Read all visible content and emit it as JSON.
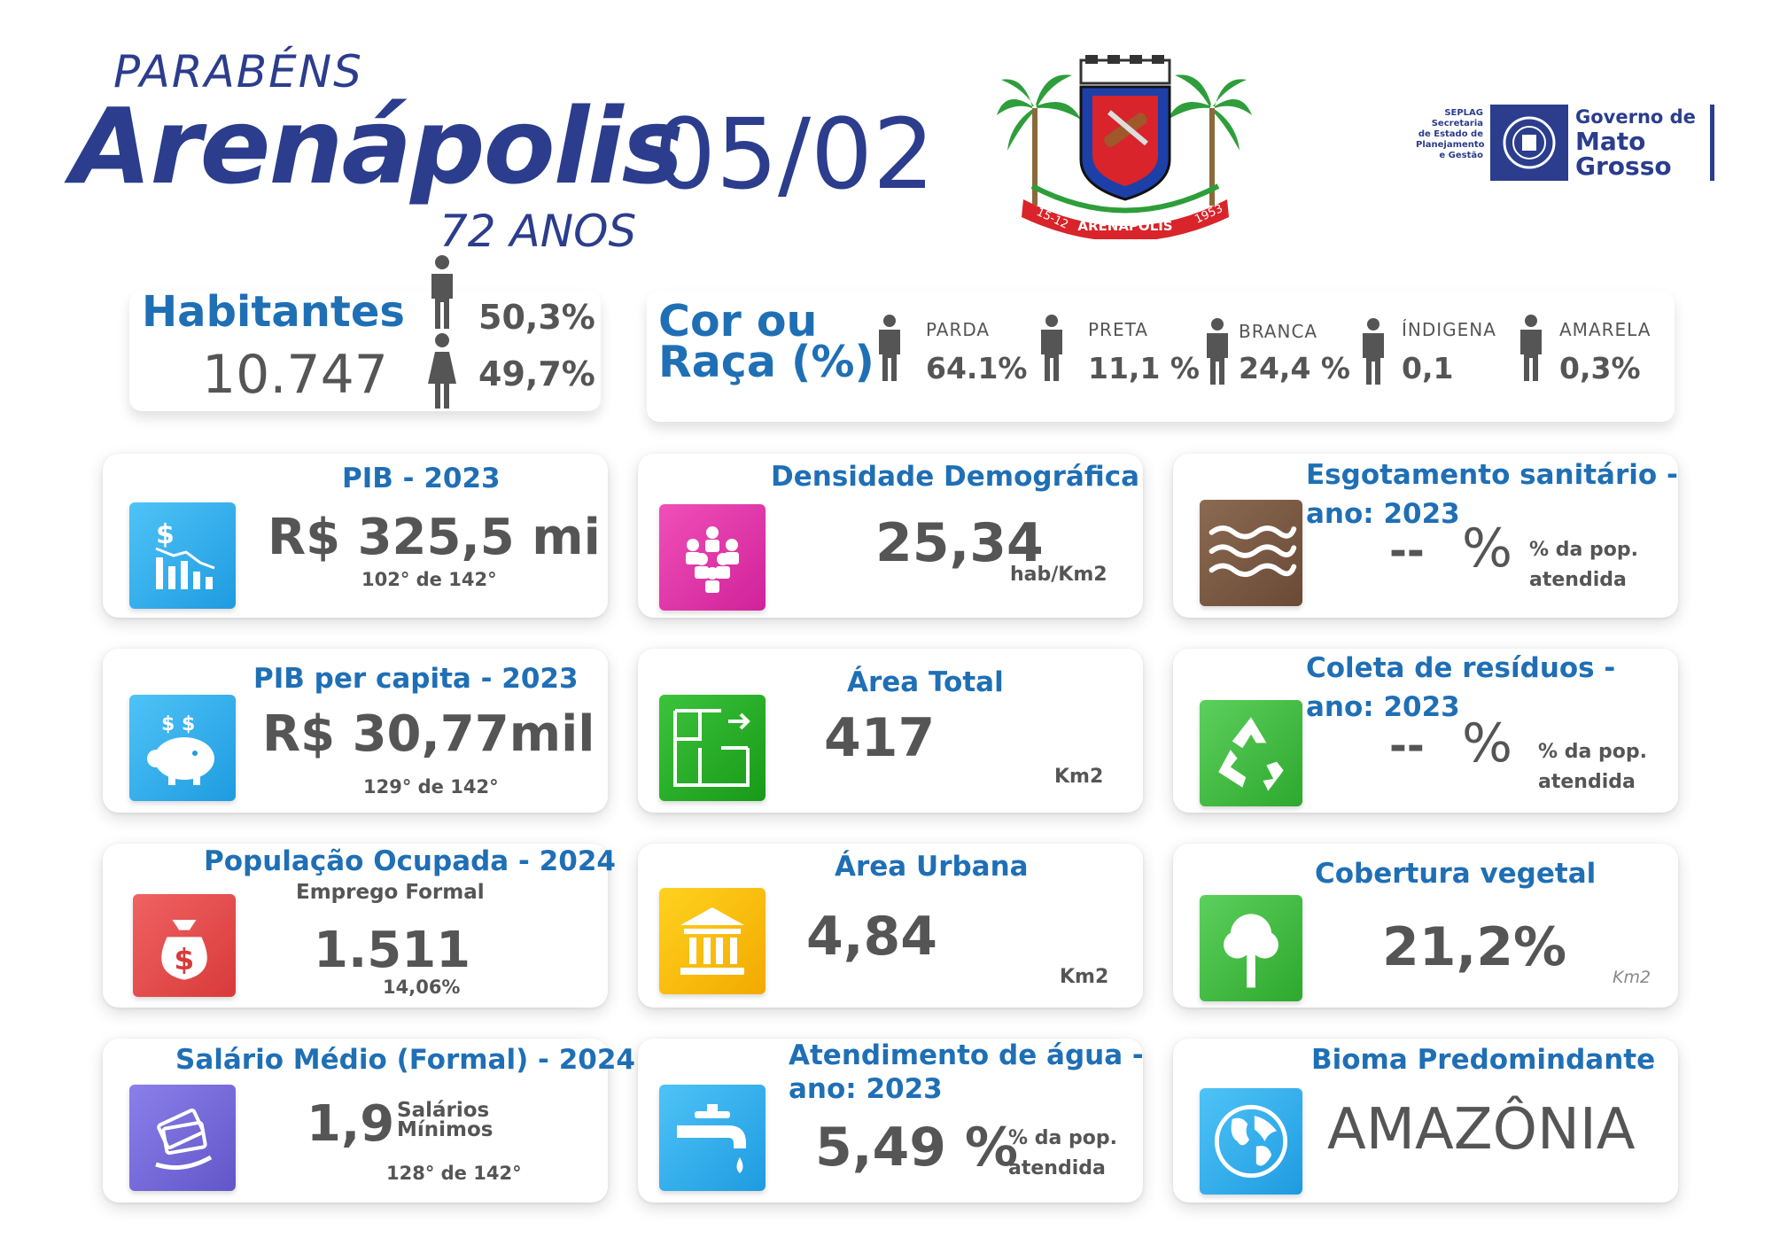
{
  "header": {
    "greeting": "PARABÉNS",
    "city": "Arenápolis",
    "date": "05/02",
    "anniversary": "72 ANOS"
  },
  "coat_of_arms": {
    "ribbon_left": "15-12",
    "ribbon_center": "ARENÁPOLIS",
    "ribbon_right": "1953"
  },
  "government_logo": {
    "agency_lines": [
      "SEPLAG",
      "Secretaria",
      "de Estado de",
      "Planejamento",
      "e Gestão"
    ],
    "gov_lines": [
      "Governo de",
      "Mato",
      "Grosso"
    ]
  },
  "habitantes": {
    "label": "Habitantes",
    "total": "10.747",
    "male_pct": "50,3%",
    "female_pct": "49,7%"
  },
  "raca": {
    "title_line1": "Cor ou",
    "title_line2": "Raça (%)",
    "items": [
      {
        "label": "PARDA",
        "value": "64.1%"
      },
      {
        "label": "PRETA",
        "value": "11,1 %"
      },
      {
        "label": "BRANCA",
        "value": "24,4 %"
      },
      {
        "label": "ÍNDIGENA",
        "value": "0,1"
      },
      {
        "label": "AMARELA",
        "value": "0,3%"
      }
    ]
  },
  "cards": {
    "pib": {
      "title": "PIB - 2023",
      "value": "R$ 325,5 mi",
      "rank": "102° de 142°",
      "icon": "chart-dollar-icon"
    },
    "pib_capita": {
      "title": "PIB per capita - 2023",
      "value": "R$ 30,77mil",
      "rank": "129° de 142°",
      "icon": "piggy-bank-icon"
    },
    "pop_ocupada": {
      "title": "População Ocupada - 2024",
      "subtitle": "Emprego Formal",
      "value": "1.511",
      "pct": "14,06%",
      "icon": "money-bag-icon"
    },
    "salario": {
      "title": "Salário Médio (Formal) - 2024",
      "value": "1,9",
      "unit_line1": "Salários",
      "unit_line2": "Mínimos",
      "rank": "128° de 142°",
      "icon": "money-hand-icon"
    },
    "densidade": {
      "title": "Densidade Demográfica",
      "value": "25,34",
      "unit": "hab/Km2",
      "icon": "people-group-icon"
    },
    "area_total": {
      "title": "Área Total",
      "value": "417",
      "unit": "Km2",
      "icon": "floor-plan-icon"
    },
    "area_urbana": {
      "title": "Área Urbana",
      "value": "4,84",
      "unit": "Km2",
      "icon": "building-icon"
    },
    "agua": {
      "title_line1": "Atendimento de água -",
      "title_line2": "ano: 2023",
      "value": "5,49 %",
      "unit_line1": "% da pop.",
      "unit_line2": "atendida",
      "icon": "water-tap-icon"
    },
    "esgoto": {
      "title_line1": "Esgotamento sanitário -",
      "title_line2": "ano: 2023",
      "value": "--",
      "pct_sign": "%",
      "unit_line1": "% da pop.",
      "unit_line2": "atendida",
      "icon": "waves-icon"
    },
    "residuos": {
      "title_line1": "Coleta de resíduos -",
      "title_line2": "ano: 2023",
      "value": "--",
      "pct_sign": "%",
      "unit_line1": "% da pop.",
      "unit_line2": "atendida",
      "icon": "recycle-icon"
    },
    "vegetal": {
      "title": "Cobertura vegetal",
      "value": "21,2%",
      "unit": "Km2",
      "icon": "tree-icon"
    },
    "bioma": {
      "title": "Bioma Predomindante",
      "value": "AMAZÔNIA",
      "icon": "globe-icon"
    }
  },
  "colors": {
    "title_blue": "#1f6fb5",
    "header_navy": "#2b3d8c",
    "value_gray": "#555555"
  }
}
